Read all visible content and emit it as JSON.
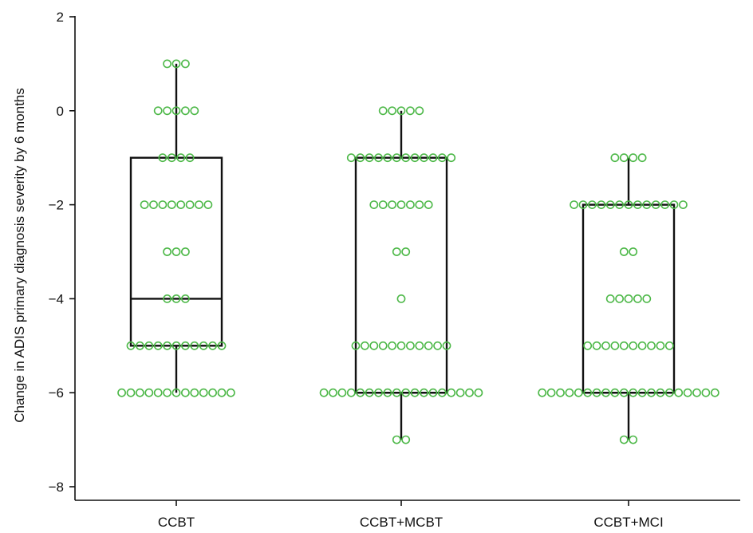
{
  "chart_data": {
    "type": "box",
    "title": "",
    "xlabel": "",
    "ylabel": "Change in ADIS primary diagnosis severity by 6 months",
    "ylim": [
      -8.5,
      2.3
    ],
    "yticks": [
      2,
      0,
      -2,
      -4,
      -6,
      -8
    ],
    "ytick_labels": [
      "2",
      "0",
      "−2",
      "−4",
      "−6",
      "−8"
    ],
    "categories": [
      "CCBT",
      "CCBT+MCBT",
      "CCBT+MCI"
    ],
    "grid": false,
    "colors": {
      "points": "#4db848",
      "box": "#111111"
    },
    "boxes": [
      {
        "name": "CCBT",
        "min": -6,
        "q1": -5,
        "median": -4,
        "q3": -1,
        "max": 1
      },
      {
        "name": "CCBT+MCBT",
        "min": -7,
        "q1": -6,
        "median": -6,
        "q3": -1,
        "max": 0
      },
      {
        "name": "CCBT+MCI",
        "min": -7,
        "q1": -6,
        "median": -6,
        "q3": -2,
        "max": -1
      }
    ],
    "points": [
      {
        "category": "CCBT",
        "counts": [
          {
            "y": 1,
            "n": 3
          },
          {
            "y": 0,
            "n": 5
          },
          {
            "y": -1,
            "n": 4
          },
          {
            "y": -2,
            "n": 8
          },
          {
            "y": -3,
            "n": 3
          },
          {
            "y": -4,
            "n": 3
          },
          {
            "y": -5,
            "n": 11
          },
          {
            "y": -6,
            "n": 13
          }
        ]
      },
      {
        "category": "CCBT+MCBT",
        "counts": [
          {
            "y": 0,
            "n": 5
          },
          {
            "y": -1,
            "n": 12
          },
          {
            "y": -2,
            "n": 7
          },
          {
            "y": -3,
            "n": 2
          },
          {
            "y": -4,
            "n": 1
          },
          {
            "y": -5,
            "n": 11
          },
          {
            "y": -6,
            "n": 18
          },
          {
            "y": -7,
            "n": 2
          }
        ]
      },
      {
        "category": "CCBT+MCI",
        "counts": [
          {
            "y": -1,
            "n": 4
          },
          {
            "y": -2,
            "n": 13
          },
          {
            "y": -3,
            "n": 2
          },
          {
            "y": -4,
            "n": 5
          },
          {
            "y": -5,
            "n": 10
          },
          {
            "y": -6,
            "n": 20
          },
          {
            "y": -7,
            "n": 2
          }
        ]
      }
    ]
  }
}
